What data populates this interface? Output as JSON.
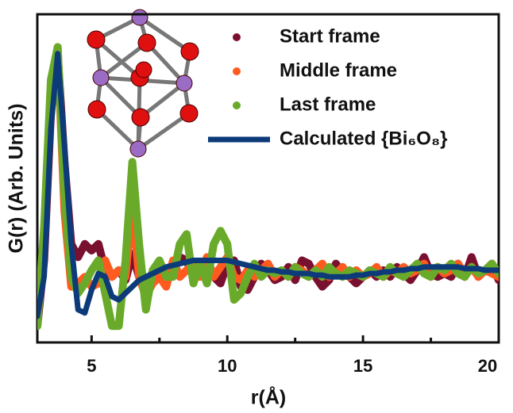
{
  "chart_data": {
    "type": "line",
    "x_label": "r(Å)",
    "y_label": "G(r) (Arb. Units)",
    "x": [
      3,
      3.25,
      3.5,
      3.75,
      4,
      4.25,
      4.5,
      4.75,
      5,
      5.25,
      5.5,
      5.75,
      6,
      6.25,
      6.5,
      6.75,
      7,
      7.25,
      7.5,
      7.75,
      8,
      8.25,
      8.5,
      8.75,
      9,
      9.25,
      9.5,
      9.75,
      10,
      10.25,
      10.5,
      10.75,
      11,
      11.25,
      11.5,
      11.75,
      12,
      12.25,
      12.5,
      12.75,
      13,
      13.25,
      13.5,
      13.75,
      14,
      14.25,
      14.5,
      14.75,
      15,
      15.25,
      15.5,
      15.75,
      16,
      16.25,
      16.5,
      16.75,
      17,
      17.25,
      17.5,
      17.75,
      18,
      18.25,
      18.5,
      18.75,
      19,
      19.25,
      19.5,
      19.75,
      20
    ],
    "series": [
      {
        "name": "Start frame",
        "color": "#7a1030",
        "marker": "dot",
        "values": [
          0.05,
          0.25,
          0.7,
          0.88,
          0.55,
          0.3,
          0.26,
          0.3,
          0.28,
          0.3,
          0.22,
          0.2,
          0.22,
          0.19,
          0.27,
          0.2,
          0.17,
          0.2,
          0.24,
          0.21,
          0.22,
          0.26,
          0.25,
          0.2,
          0.24,
          0.22,
          0.2,
          0.18,
          0.24,
          0.25,
          0.17,
          0.16,
          0.2,
          0.24,
          0.22,
          0.19,
          0.2,
          0.23,
          0.19,
          0.25,
          0.24,
          0.2,
          0.17,
          0.19,
          0.24,
          0.21,
          0.2,
          0.18,
          0.2,
          0.22,
          0.2,
          0.22,
          0.2,
          0.23,
          0.21,
          0.19,
          0.22,
          0.26,
          0.21,
          0.2,
          0.21,
          0.2,
          0.24,
          0.2,
          0.26,
          0.2,
          0.22,
          0.24,
          0.19
        ]
      },
      {
        "name": "Middle frame",
        "color": "#ff5a1f",
        "marker": "dot",
        "values": [
          0.06,
          0.3,
          0.75,
          0.9,
          0.4,
          0.17,
          0.18,
          0.2,
          0.17,
          0.18,
          0.25,
          0.2,
          0.22,
          0.2,
          0.42,
          0.2,
          0.14,
          0.18,
          0.2,
          0.17,
          0.25,
          0.2,
          0.22,
          0.24,
          0.2,
          0.26,
          0.2,
          0.23,
          0.26,
          0.2,
          0.19,
          0.22,
          0.2,
          0.22,
          0.24,
          0.2,
          0.22,
          0.2,
          0.23,
          0.22,
          0.2,
          0.22,
          0.24,
          0.2,
          0.21,
          0.23,
          0.2,
          0.22,
          0.2,
          0.21,
          0.23,
          0.2,
          0.22,
          0.21,
          0.23,
          0.21,
          0.22,
          0.24,
          0.2,
          0.23,
          0.21,
          0.22,
          0.24,
          0.21,
          0.23,
          0.2,
          0.22,
          0.21,
          0.2
        ]
      },
      {
        "name": "Last frame",
        "color": "#6aaa2a",
        "marker": "dot",
        "values": [
          0.05,
          0.35,
          0.8,
          0.9,
          0.45,
          0.2,
          0.15,
          0.18,
          0.22,
          0.25,
          0.15,
          0.05,
          0.05,
          0.25,
          0.55,
          0.3,
          0.1,
          0.22,
          0.25,
          0.2,
          0.2,
          0.3,
          0.33,
          0.18,
          0.24,
          0.18,
          0.3,
          0.34,
          0.3,
          0.13,
          0.15,
          0.2,
          0.24,
          0.2,
          0.22,
          0.21,
          0.22,
          0.2,
          0.23,
          0.21,
          0.2,
          0.22,
          0.2,
          0.23,
          0.21,
          0.2,
          0.22,
          0.21,
          0.2,
          0.22,
          0.21,
          0.2,
          0.23,
          0.21,
          0.2,
          0.22,
          0.24,
          0.21,
          0.2,
          0.23,
          0.22,
          0.24,
          0.21,
          0.2,
          0.23,
          0.21,
          0.22,
          0.24,
          0.21
        ]
      },
      {
        "name": "Calculated {Bi₆O₈}",
        "color": "#0d3b7a",
        "marker": "line",
        "values": [
          0.08,
          0.2,
          0.65,
          0.88,
          0.6,
          0.3,
          0.1,
          0.09,
          0.16,
          0.21,
          0.2,
          0.14,
          0.13,
          0.15,
          0.17,
          0.19,
          0.2,
          0.21,
          0.22,
          0.23,
          0.235,
          0.24,
          0.245,
          0.25,
          0.25,
          0.25,
          0.25,
          0.25,
          0.25,
          0.245,
          0.24,
          0.235,
          0.23,
          0.225,
          0.22,
          0.22,
          0.215,
          0.215,
          0.21,
          0.21,
          0.21,
          0.205,
          0.205,
          0.2,
          0.2,
          0.2,
          0.2,
          0.205,
          0.205,
          0.21,
          0.21,
          0.215,
          0.215,
          0.22,
          0.22,
          0.225,
          0.225,
          0.23,
          0.23,
          0.23,
          0.23,
          0.23,
          0.23,
          0.225,
          0.225,
          0.225,
          0.22,
          0.22,
          0.22
        ]
      }
    ],
    "xlim": [
      3,
      20
    ],
    "ylim": [
      0,
      1
    ],
    "xticks": [
      5,
      10,
      15,
      20
    ],
    "xminorticks": [
      7.5,
      12.5,
      17.5
    ],
    "legend": "upper right"
  }
}
